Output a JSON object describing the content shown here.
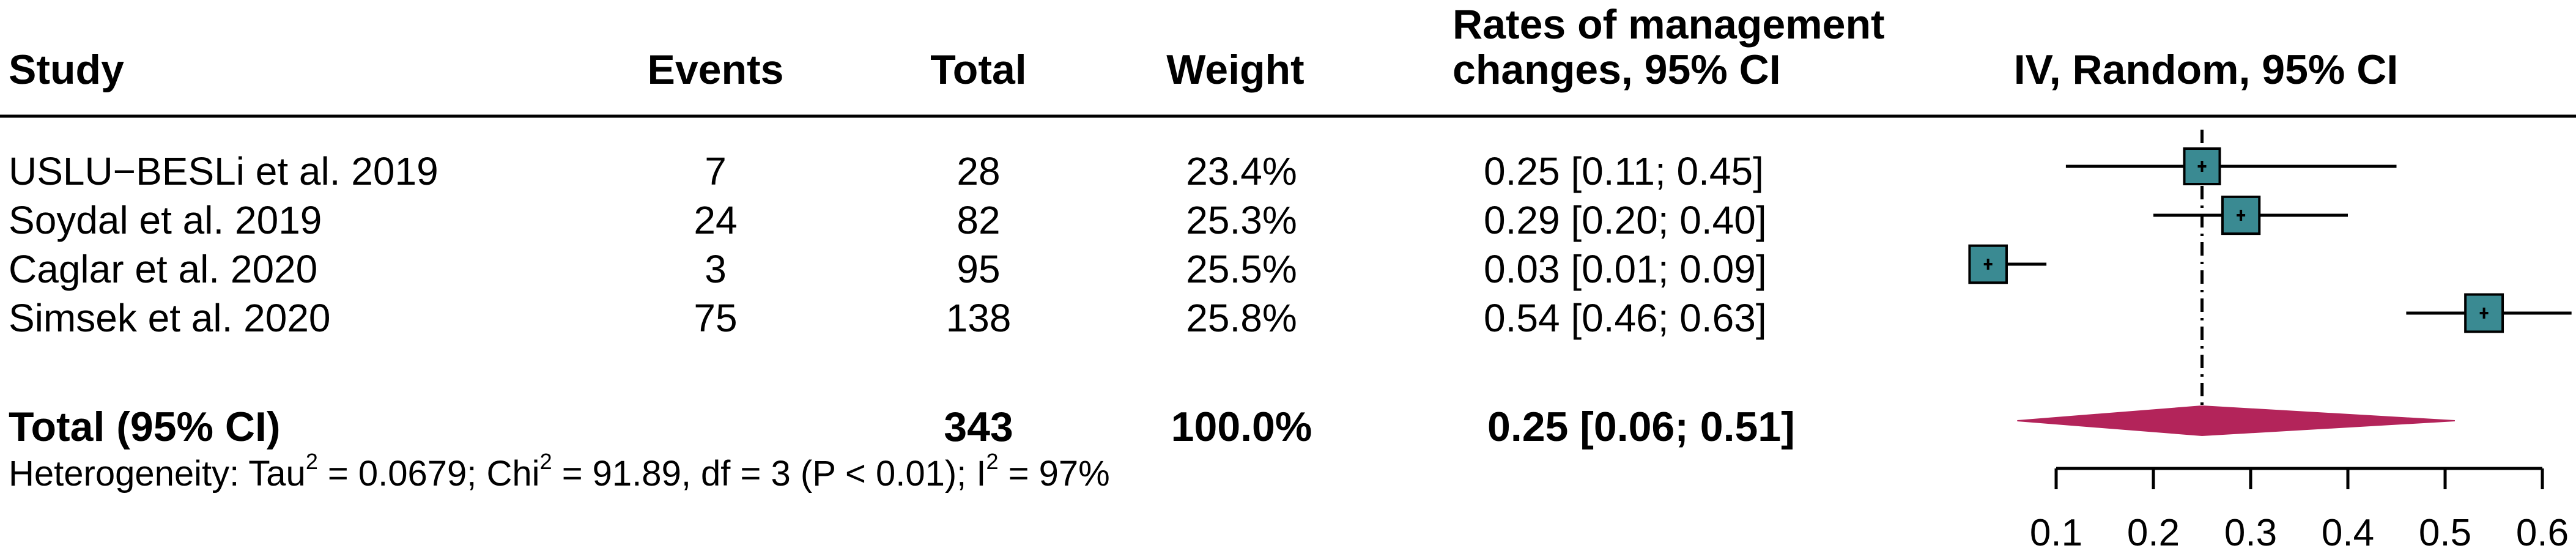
{
  "headers": {
    "study": "Study",
    "events": "Events",
    "total": "Total",
    "weight": "Weight",
    "rate_line1": "Rates of management",
    "rate_line2": "changes, 95% CI",
    "plot": "IV, Random, 95% CI"
  },
  "rows": [
    {
      "study": "USLU−BESLi et al. 2019",
      "events": "7",
      "total": "28",
      "weight": "23.4%",
      "ci_text": "0.25 [0.11; 0.45]"
    },
    {
      "study": "Soydal et al. 2019",
      "events": "24",
      "total": "82",
      "weight": "25.3%",
      "ci_text": "0.29 [0.20; 0.40]"
    },
    {
      "study": "Caglar et al. 2020",
      "events": "3",
      "total": "95",
      "weight": "25.5%",
      "ci_text": "0.03 [0.01; 0.09]"
    },
    {
      "study": "Simsek et al. 2020",
      "events": "75",
      "total": "138",
      "weight": "25.8%",
      "ci_text": "0.54 [0.46; 0.63]"
    }
  ],
  "summary": {
    "label": "Total (95% CI)",
    "total": "343",
    "weight": "100.0%",
    "ci_text": "0.25 [0.06; 0.51]"
  },
  "heterogeneity": {
    "prefix": "Heterogeneity: Tau",
    "tau_exp": "2",
    "tau_val": " = 0.0679; Chi",
    "chi_exp": "2",
    "chi_val": " = 91.89, df = 3 (P < 0.01); I",
    "i_exp": "2",
    "i_val": " = 97%"
  },
  "chart_data": {
    "type": "forest",
    "series": [
      {
        "study": "USLU−BESLi et al. 2019",
        "estimate": 0.25,
        "lower": 0.11,
        "upper": 0.45,
        "weight": 23.4
      },
      {
        "study": "Soydal et al. 2019",
        "estimate": 0.29,
        "lower": 0.2,
        "upper": 0.4,
        "weight": 25.3
      },
      {
        "study": "Caglar et al. 2020",
        "estimate": 0.03,
        "lower": 0.01,
        "upper": 0.09,
        "weight": 25.5
      },
      {
        "study": "Simsek et al. 2020",
        "estimate": 0.54,
        "lower": 0.46,
        "upper": 0.63,
        "weight": 25.8
      }
    ],
    "pooled": {
      "estimate": 0.25,
      "lower": 0.06,
      "upper": 0.51
    },
    "xlim": [
      0.1,
      0.6
    ],
    "xticks": [
      "0.1",
      "0.2",
      "0.3",
      "0.4",
      "0.5",
      "0.6"
    ],
    "reference_line": 0.25,
    "colors": {
      "box": "#3a8a92",
      "diamond": "#b3245a"
    }
  }
}
